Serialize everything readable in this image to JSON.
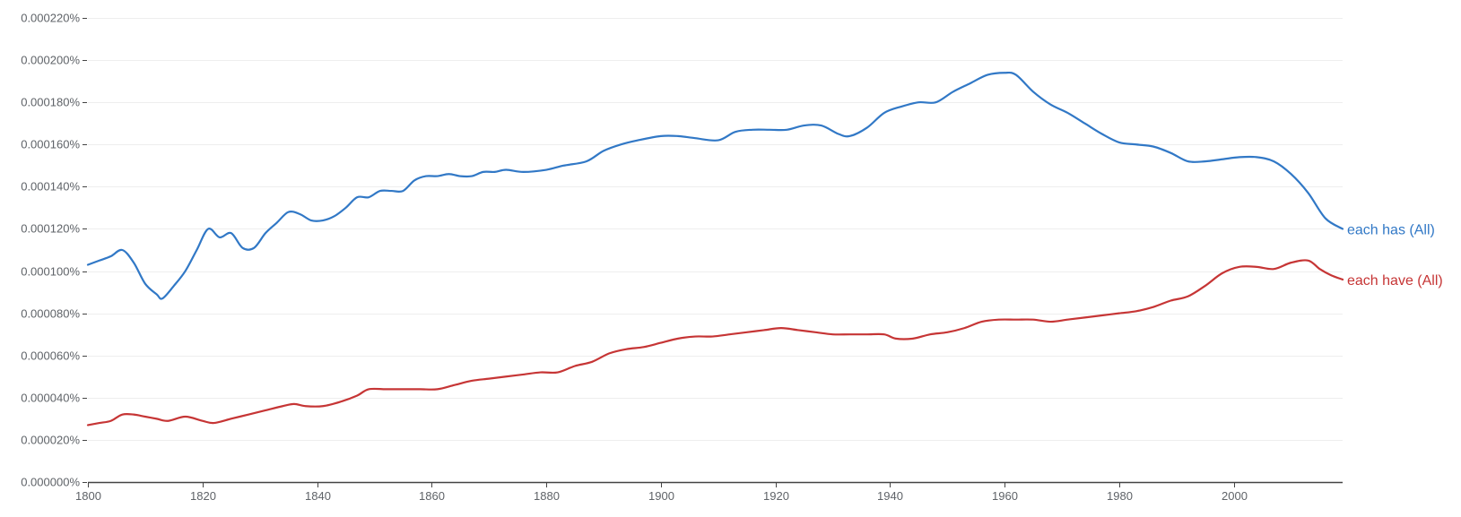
{
  "colors": {
    "background": "#ffffff",
    "gridline": "#eeeeee",
    "axis": "#444444",
    "tick_text": "#5f6368",
    "each_has": "#3178c6",
    "each_have": "#c63535"
  },
  "chart_data": {
    "type": "line",
    "title": "",
    "xlabel": "",
    "ylabel": "",
    "xlim": [
      1800,
      2019
    ],
    "ylim": [
      0,
      0.00022
    ],
    "grid": true,
    "legend": "end-of-line labels at right",
    "x_ticks": [
      1800,
      1820,
      1840,
      1860,
      1880,
      1900,
      1920,
      1940,
      1960,
      1980,
      2000
    ],
    "x_tick_labels": [
      "1800",
      "1820",
      "1840",
      "1860",
      "1880",
      "1900",
      "1920",
      "1940",
      "1960",
      "1980",
      "2000"
    ],
    "y_ticks": [
      0,
      2e-05,
      4e-05,
      6e-05,
      8e-05,
      0.0001,
      0.00012,
      0.00014,
      0.00016,
      0.00018,
      0.0002,
      0.00022
    ],
    "y_tick_labels": [
      "0.000000%",
      "0.000020%",
      "0.000040%",
      "0.000060%",
      "0.000080%",
      "0.000100%",
      "0.000120%",
      "0.000140%",
      "0.000160%",
      "0.000180%",
      "0.000200%",
      "0.000220%"
    ],
    "series": [
      {
        "name": "each has (All)",
        "color": "#3178c6",
        "points": [
          [
            1800,
            0.000103
          ],
          [
            1802,
            0.000105
          ],
          [
            1804,
            0.000107
          ],
          [
            1806,
            0.00011
          ],
          [
            1808,
            0.000104
          ],
          [
            1810,
            9.4e-05
          ],
          [
            1812,
            8.9e-05
          ],
          [
            1813,
            8.7e-05
          ],
          [
            1815,
            9.3e-05
          ],
          [
            1817,
            0.0001
          ],
          [
            1819,
            0.00011
          ],
          [
            1821,
            0.00012
          ],
          [
            1823,
            0.000116
          ],
          [
            1825,
            0.000118
          ],
          [
            1827,
            0.000111
          ],
          [
            1829,
            0.000111
          ],
          [
            1831,
            0.000118
          ],
          [
            1833,
            0.000123
          ],
          [
            1835,
            0.000128
          ],
          [
            1837,
            0.000127
          ],
          [
            1839,
            0.000124
          ],
          [
            1841,
            0.000124
          ],
          [
            1843,
            0.000126
          ],
          [
            1845,
            0.00013
          ],
          [
            1847,
            0.000135
          ],
          [
            1849,
            0.000135
          ],
          [
            1851,
            0.000138
          ],
          [
            1853,
            0.000138
          ],
          [
            1855,
            0.000138
          ],
          [
            1857,
            0.000143
          ],
          [
            1859,
            0.000145
          ],
          [
            1861,
            0.000145
          ],
          [
            1863,
            0.000146
          ],
          [
            1865,
            0.000145
          ],
          [
            1867,
            0.000145
          ],
          [
            1869,
            0.000147
          ],
          [
            1871,
            0.000147
          ],
          [
            1873,
            0.000148
          ],
          [
            1876,
            0.000147
          ],
          [
            1880,
            0.000148
          ],
          [
            1883,
            0.00015
          ],
          [
            1887,
            0.000152
          ],
          [
            1890,
            0.000157
          ],
          [
            1893,
            0.00016
          ],
          [
            1896,
            0.000162
          ],
          [
            1900,
            0.000164
          ],
          [
            1903,
            0.000164
          ],
          [
            1906,
            0.000163
          ],
          [
            1910,
            0.000162
          ],
          [
            1913,
            0.000166
          ],
          [
            1916,
            0.000167
          ],
          [
            1919,
            0.000167
          ],
          [
            1922,
            0.000167
          ],
          [
            1925,
            0.000169
          ],
          [
            1928,
            0.000169
          ],
          [
            1931,
            0.000165
          ],
          [
            1933,
            0.000164
          ],
          [
            1936,
            0.000168
          ],
          [
            1939,
            0.000175
          ],
          [
            1942,
            0.000178
          ],
          [
            1945,
            0.00018
          ],
          [
            1948,
            0.00018
          ],
          [
            1951,
            0.000185
          ],
          [
            1954,
            0.000189
          ],
          [
            1957,
            0.000193
          ],
          [
            1960,
            0.000194
          ],
          [
            1962,
            0.000193
          ],
          [
            1965,
            0.000185
          ],
          [
            1968,
            0.000179
          ],
          [
            1971,
            0.000175
          ],
          [
            1974,
            0.00017
          ],
          [
            1977,
            0.000165
          ],
          [
            1980,
            0.000161
          ],
          [
            1983,
            0.00016
          ],
          [
            1986,
            0.000159
          ],
          [
            1989,
            0.000156
          ],
          [
            1992,
            0.000152
          ],
          [
            1995,
            0.000152
          ],
          [
            1998,
            0.000153
          ],
          [
            2001,
            0.000154
          ],
          [
            2004,
            0.000154
          ],
          [
            2007,
            0.000152
          ],
          [
            2010,
            0.000146
          ],
          [
            2013,
            0.000137
          ],
          [
            2016,
            0.000125
          ],
          [
            2019,
            0.00012
          ]
        ]
      },
      {
        "name": "each have (All)",
        "color": "#c63535",
        "points": [
          [
            1800,
            2.7e-05
          ],
          [
            1802,
            2.8e-05
          ],
          [
            1804,
            2.9e-05
          ],
          [
            1806,
            3.2e-05
          ],
          [
            1808,
            3.2e-05
          ],
          [
            1810,
            3.1e-05
          ],
          [
            1812,
            3e-05
          ],
          [
            1814,
            2.9e-05
          ],
          [
            1817,
            3.1e-05
          ],
          [
            1820,
            2.9e-05
          ],
          [
            1822,
            2.8e-05
          ],
          [
            1825,
            3e-05
          ],
          [
            1828,
            3.2e-05
          ],
          [
            1831,
            3.4e-05
          ],
          [
            1834,
            3.6e-05
          ],
          [
            1836,
            3.7e-05
          ],
          [
            1838,
            3.6e-05
          ],
          [
            1841,
            3.6e-05
          ],
          [
            1844,
            3.8e-05
          ],
          [
            1847,
            4.1e-05
          ],
          [
            1849,
            4.4e-05
          ],
          [
            1852,
            4.4e-05
          ],
          [
            1855,
            4.4e-05
          ],
          [
            1858,
            4.4e-05
          ],
          [
            1861,
            4.4e-05
          ],
          [
            1864,
            4.6e-05
          ],
          [
            1867,
            4.8e-05
          ],
          [
            1870,
            4.9e-05
          ],
          [
            1873,
            5e-05
          ],
          [
            1876,
            5.1e-05
          ],
          [
            1879,
            5.2e-05
          ],
          [
            1882,
            5.2e-05
          ],
          [
            1885,
            5.5e-05
          ],
          [
            1888,
            5.7e-05
          ],
          [
            1891,
            6.1e-05
          ],
          [
            1894,
            6.3e-05
          ],
          [
            1897,
            6.4e-05
          ],
          [
            1900,
            6.6e-05
          ],
          [
            1903,
            6.8e-05
          ],
          [
            1906,
            6.9e-05
          ],
          [
            1909,
            6.9e-05
          ],
          [
            1912,
            7e-05
          ],
          [
            1915,
            7.1e-05
          ],
          [
            1918,
            7.2e-05
          ],
          [
            1921,
            7.3e-05
          ],
          [
            1924,
            7.2e-05
          ],
          [
            1927,
            7.1e-05
          ],
          [
            1930,
            7e-05
          ],
          [
            1933,
            7e-05
          ],
          [
            1936,
            7e-05
          ],
          [
            1939,
            7e-05
          ],
          [
            1941,
            6.8e-05
          ],
          [
            1944,
            6.8e-05
          ],
          [
            1947,
            7e-05
          ],
          [
            1950,
            7.1e-05
          ],
          [
            1953,
            7.3e-05
          ],
          [
            1956,
            7.6e-05
          ],
          [
            1959,
            7.7e-05
          ],
          [
            1962,
            7.7e-05
          ],
          [
            1965,
            7.7e-05
          ],
          [
            1968,
            7.6e-05
          ],
          [
            1971,
            7.7e-05
          ],
          [
            1974,
            7.8e-05
          ],
          [
            1977,
            7.9e-05
          ],
          [
            1980,
            8e-05
          ],
          [
            1983,
            8.1e-05
          ],
          [
            1986,
            8.3e-05
          ],
          [
            1989,
            8.6e-05
          ],
          [
            1992,
            8.8e-05
          ],
          [
            1995,
            9.3e-05
          ],
          [
            1998,
            9.9e-05
          ],
          [
            2001,
            0.000102
          ],
          [
            2004,
            0.000102
          ],
          [
            2007,
            0.000101
          ],
          [
            2010,
            0.000104
          ],
          [
            2013,
            0.000105
          ],
          [
            2015,
            0.000101
          ],
          [
            2017,
            9.8e-05
          ],
          [
            2019,
            9.6e-05
          ]
        ]
      }
    ]
  }
}
